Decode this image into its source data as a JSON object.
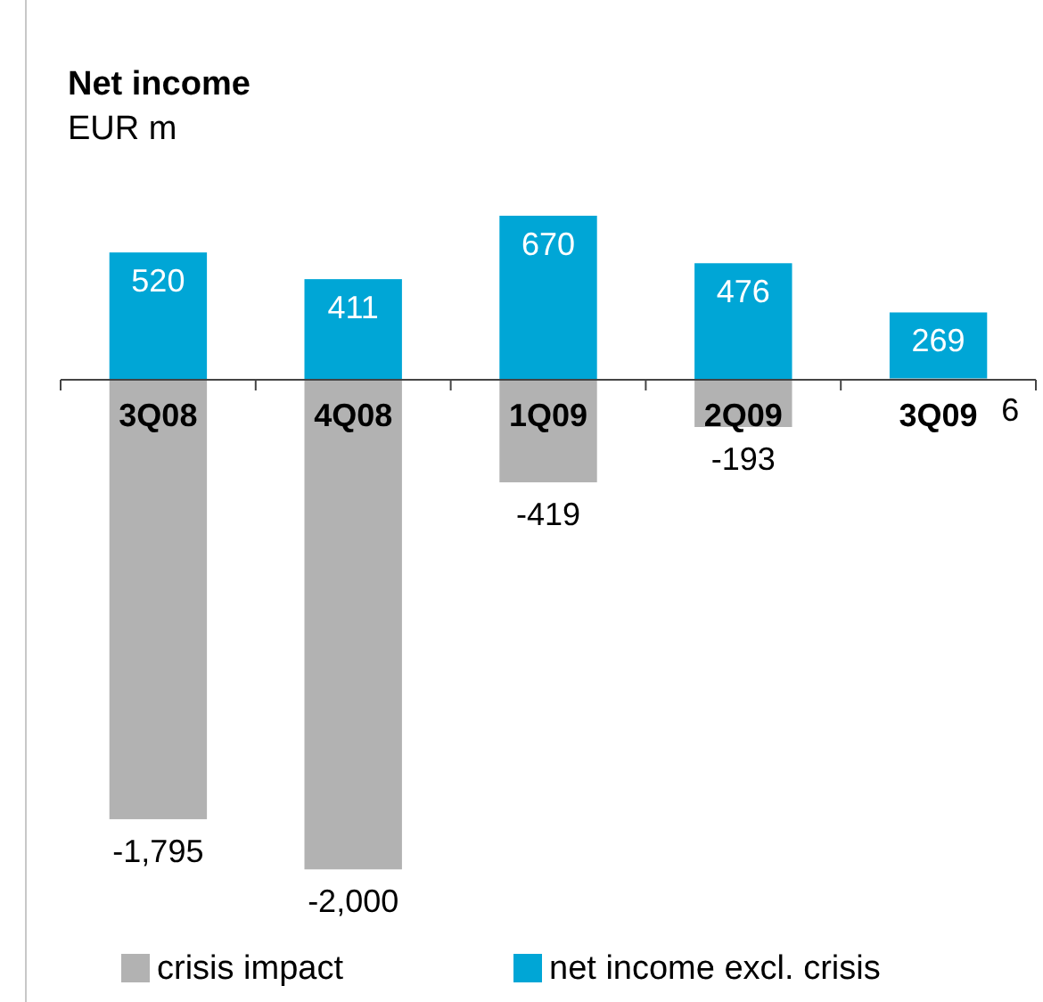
{
  "chart_data": {
    "type": "bar",
    "title": "Net income",
    "subtitle": "EUR m",
    "categories": [
      "3Q08",
      "4Q08",
      "1Q09",
      "2Q09",
      "3Q09"
    ],
    "stacked": true,
    "legend": "bottom",
    "series": [
      {
        "name": "crisis impact",
        "color": "#b2b2b2",
        "values": [
          -1795,
          -2000,
          -419,
          -193,
          6
        ],
        "value_labels": [
          "-1,795",
          "-2,000",
          "-419",
          "-193",
          "6"
        ]
      },
      {
        "name": "net income excl. crisis",
        "color": "#00a6d6",
        "values": [
          520,
          411,
          670,
          476,
          269
        ],
        "value_labels": [
          "520",
          "411",
          "670",
          "476",
          "269"
        ]
      }
    ]
  }
}
